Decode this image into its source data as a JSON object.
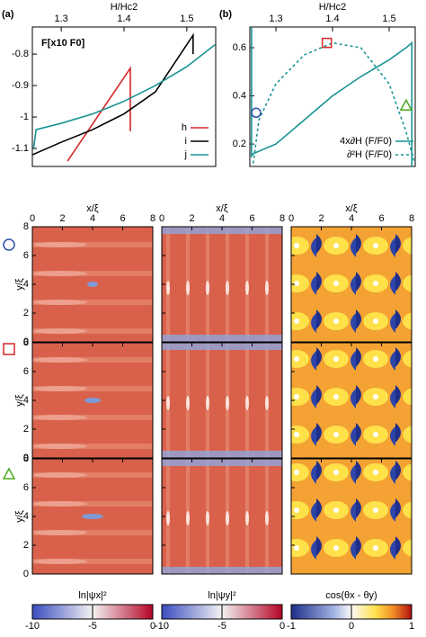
{
  "chart_data": [
    {
      "type": "line",
      "panel": "(a)",
      "xlabel": "H/Hc2",
      "annotation": "F[x10 F0]",
      "xlim": [
        1.254,
        1.546
      ],
      "xticks": [
        1.3,
        1.4,
        1.5
      ],
      "ylim": [
        -1.157,
        -0.714
      ],
      "yticks": [
        -1.1,
        -1.0,
        -0.9,
        -0.8
      ],
      "series": [
        {
          "name": "h",
          "color": "#d62728",
          "x": [
            1.31,
            1.41,
            1.41
          ],
          "values": [
            -1.14,
            -0.845,
            -1.045
          ]
        },
        {
          "name": "i",
          "color": "#000000",
          "x": [
            1.254,
            1.3,
            1.35,
            1.4,
            1.45,
            1.51,
            1.51
          ],
          "values": [
            -1.12,
            -1.08,
            -1.04,
            -0.99,
            -0.92,
            -0.74,
            -0.8
          ]
        },
        {
          "name": "j",
          "color": "#1a9393",
          "x": [
            1.256,
            1.26,
            1.3,
            1.35,
            1.4,
            1.45,
            1.5,
            1.545
          ],
          "values": [
            -1.1,
            -1.04,
            -1.02,
            -0.99,
            -0.95,
            -0.9,
            -0.84,
            -0.77
          ]
        }
      ]
    },
    {
      "type": "line",
      "panel": "(b)",
      "xlabel": "H/Hc2",
      "xlim": [
        1.254,
        1.546
      ],
      "xticks": [
        1.3,
        1.4,
        1.5
      ],
      "ylim": [
        0.107,
        0.686
      ],
      "yticks": [
        0.2,
        0.4,
        0.6
      ],
      "series": [
        {
          "name": "4x∂H (F/F0)",
          "color": "#1a9393",
          "dash": false,
          "x": [
            1.257,
            1.257,
            1.26,
            1.3,
            1.35,
            1.4,
            1.45,
            1.5,
            1.53,
            1.54,
            1.54
          ],
          "values": [
            0.686,
            0.15,
            0.16,
            0.2,
            0.3,
            0.4,
            0.48,
            0.55,
            0.6,
            0.62,
            0.107
          ]
        },
        {
          "name": "∂²H (F/F0)",
          "color": "#1a9393",
          "dash": true,
          "x": [
            1.26,
            1.27,
            1.3,
            1.35,
            1.4,
            1.45,
            1.5,
            1.53,
            1.545
          ],
          "values": [
            0.12,
            0.3,
            0.45,
            0.57,
            0.62,
            0.6,
            0.45,
            0.25,
            0.12
          ]
        }
      ],
      "markers": [
        {
          "shape": "circle",
          "color": "#2b4fa8",
          "x": 1.265,
          "y": 0.33
        },
        {
          "shape": "square",
          "color": "#d62728",
          "x": 1.39,
          "y": 0.62
        },
        {
          "shape": "triangle",
          "color": "#4aa81e",
          "x": 1.53,
          "y": 0.36
        }
      ]
    },
    {
      "type": "heatmap",
      "xlabel": "x/ξ",
      "ylabel": "y/ξ",
      "xlim": [
        0,
        8
      ],
      "ylim": [
        0,
        8
      ],
      "xticks": [
        0,
        2,
        4,
        6,
        8
      ],
      "yticks": [
        0,
        2,
        4,
        6,
        8
      ],
      "colorbars": [
        {
          "label": "ln|ψx|²",
          "lim": [
            -10,
            0
          ],
          "ticks": [
            -10,
            -5,
            0
          ]
        },
        {
          "label": "ln|ψy|²",
          "lim": [
            -10,
            0
          ],
          "ticks": [
            -10,
            -5,
            0
          ]
        },
        {
          "label": "cos(θx - θy)",
          "lim": [
            -1,
            1
          ],
          "ticks": [
            -1,
            0,
            1
          ]
        }
      ]
    }
  ]
}
